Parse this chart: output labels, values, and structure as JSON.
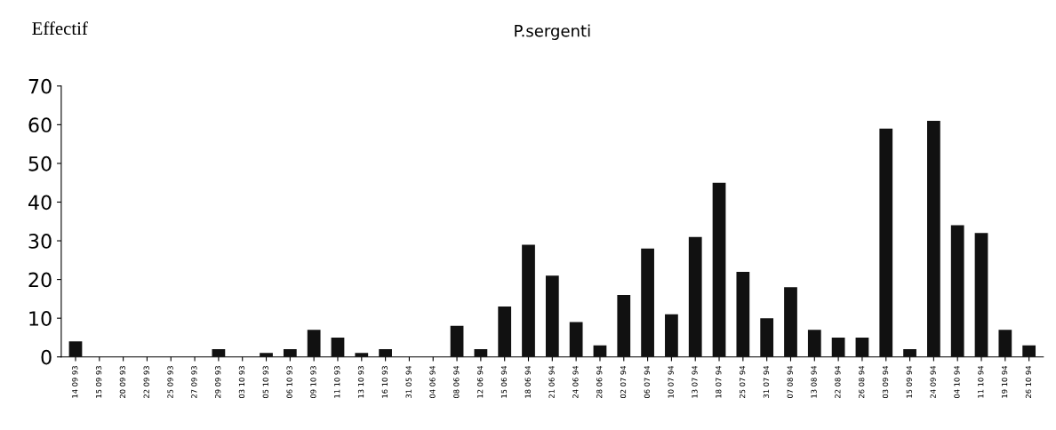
{
  "chart_data": {
    "type": "bar",
    "title": "P.sergenti",
    "ylabel": "Effectif",
    "categories": [
      "14 09 93",
      "15 09 93",
      "20 09 93",
      "22 09 93",
      "25 09 93",
      "27 09 93",
      "29 09 93",
      "03 10 93",
      "05 10 93",
      "06 10 93",
      "09 10 93",
      "11 10 93",
      "13 10 93",
      "16 10 93",
      "31 05 94",
      "04 06 94",
      "08 06 94",
      "12 06 94",
      "15 06 94",
      "18 06 94",
      "21 06 94",
      "24 06 94",
      "28 06 94",
      "02 07 94",
      "06 07 94",
      "10 07 94",
      "13 07 94",
      "18 07 94",
      "25 07 94",
      "31 07 94",
      "07 08 94",
      "13 08 94",
      "22 08 94",
      "26 08 94",
      "03 09 94",
      "15 09 94",
      "24 09 94",
      "04 10 94",
      "11 10 94",
      "19 10 94",
      "26 10 94"
    ],
    "values": [
      4,
      0,
      0,
      0,
      0,
      0,
      2,
      0,
      1,
      2,
      7,
      5,
      1,
      2,
      0,
      0,
      8,
      2,
      13,
      29,
      21,
      9,
      3,
      16,
      28,
      11,
      31,
      45,
      22,
      10,
      18,
      7,
      5,
      5,
      59,
      2,
      61,
      34,
      32,
      7,
      3
    ],
    "color": "#111111",
    "ylim": [
      0,
      70
    ],
    "yticks": [
      0,
      10,
      20,
      30,
      40,
      50,
      60,
      70
    ],
    "grid": false
  }
}
